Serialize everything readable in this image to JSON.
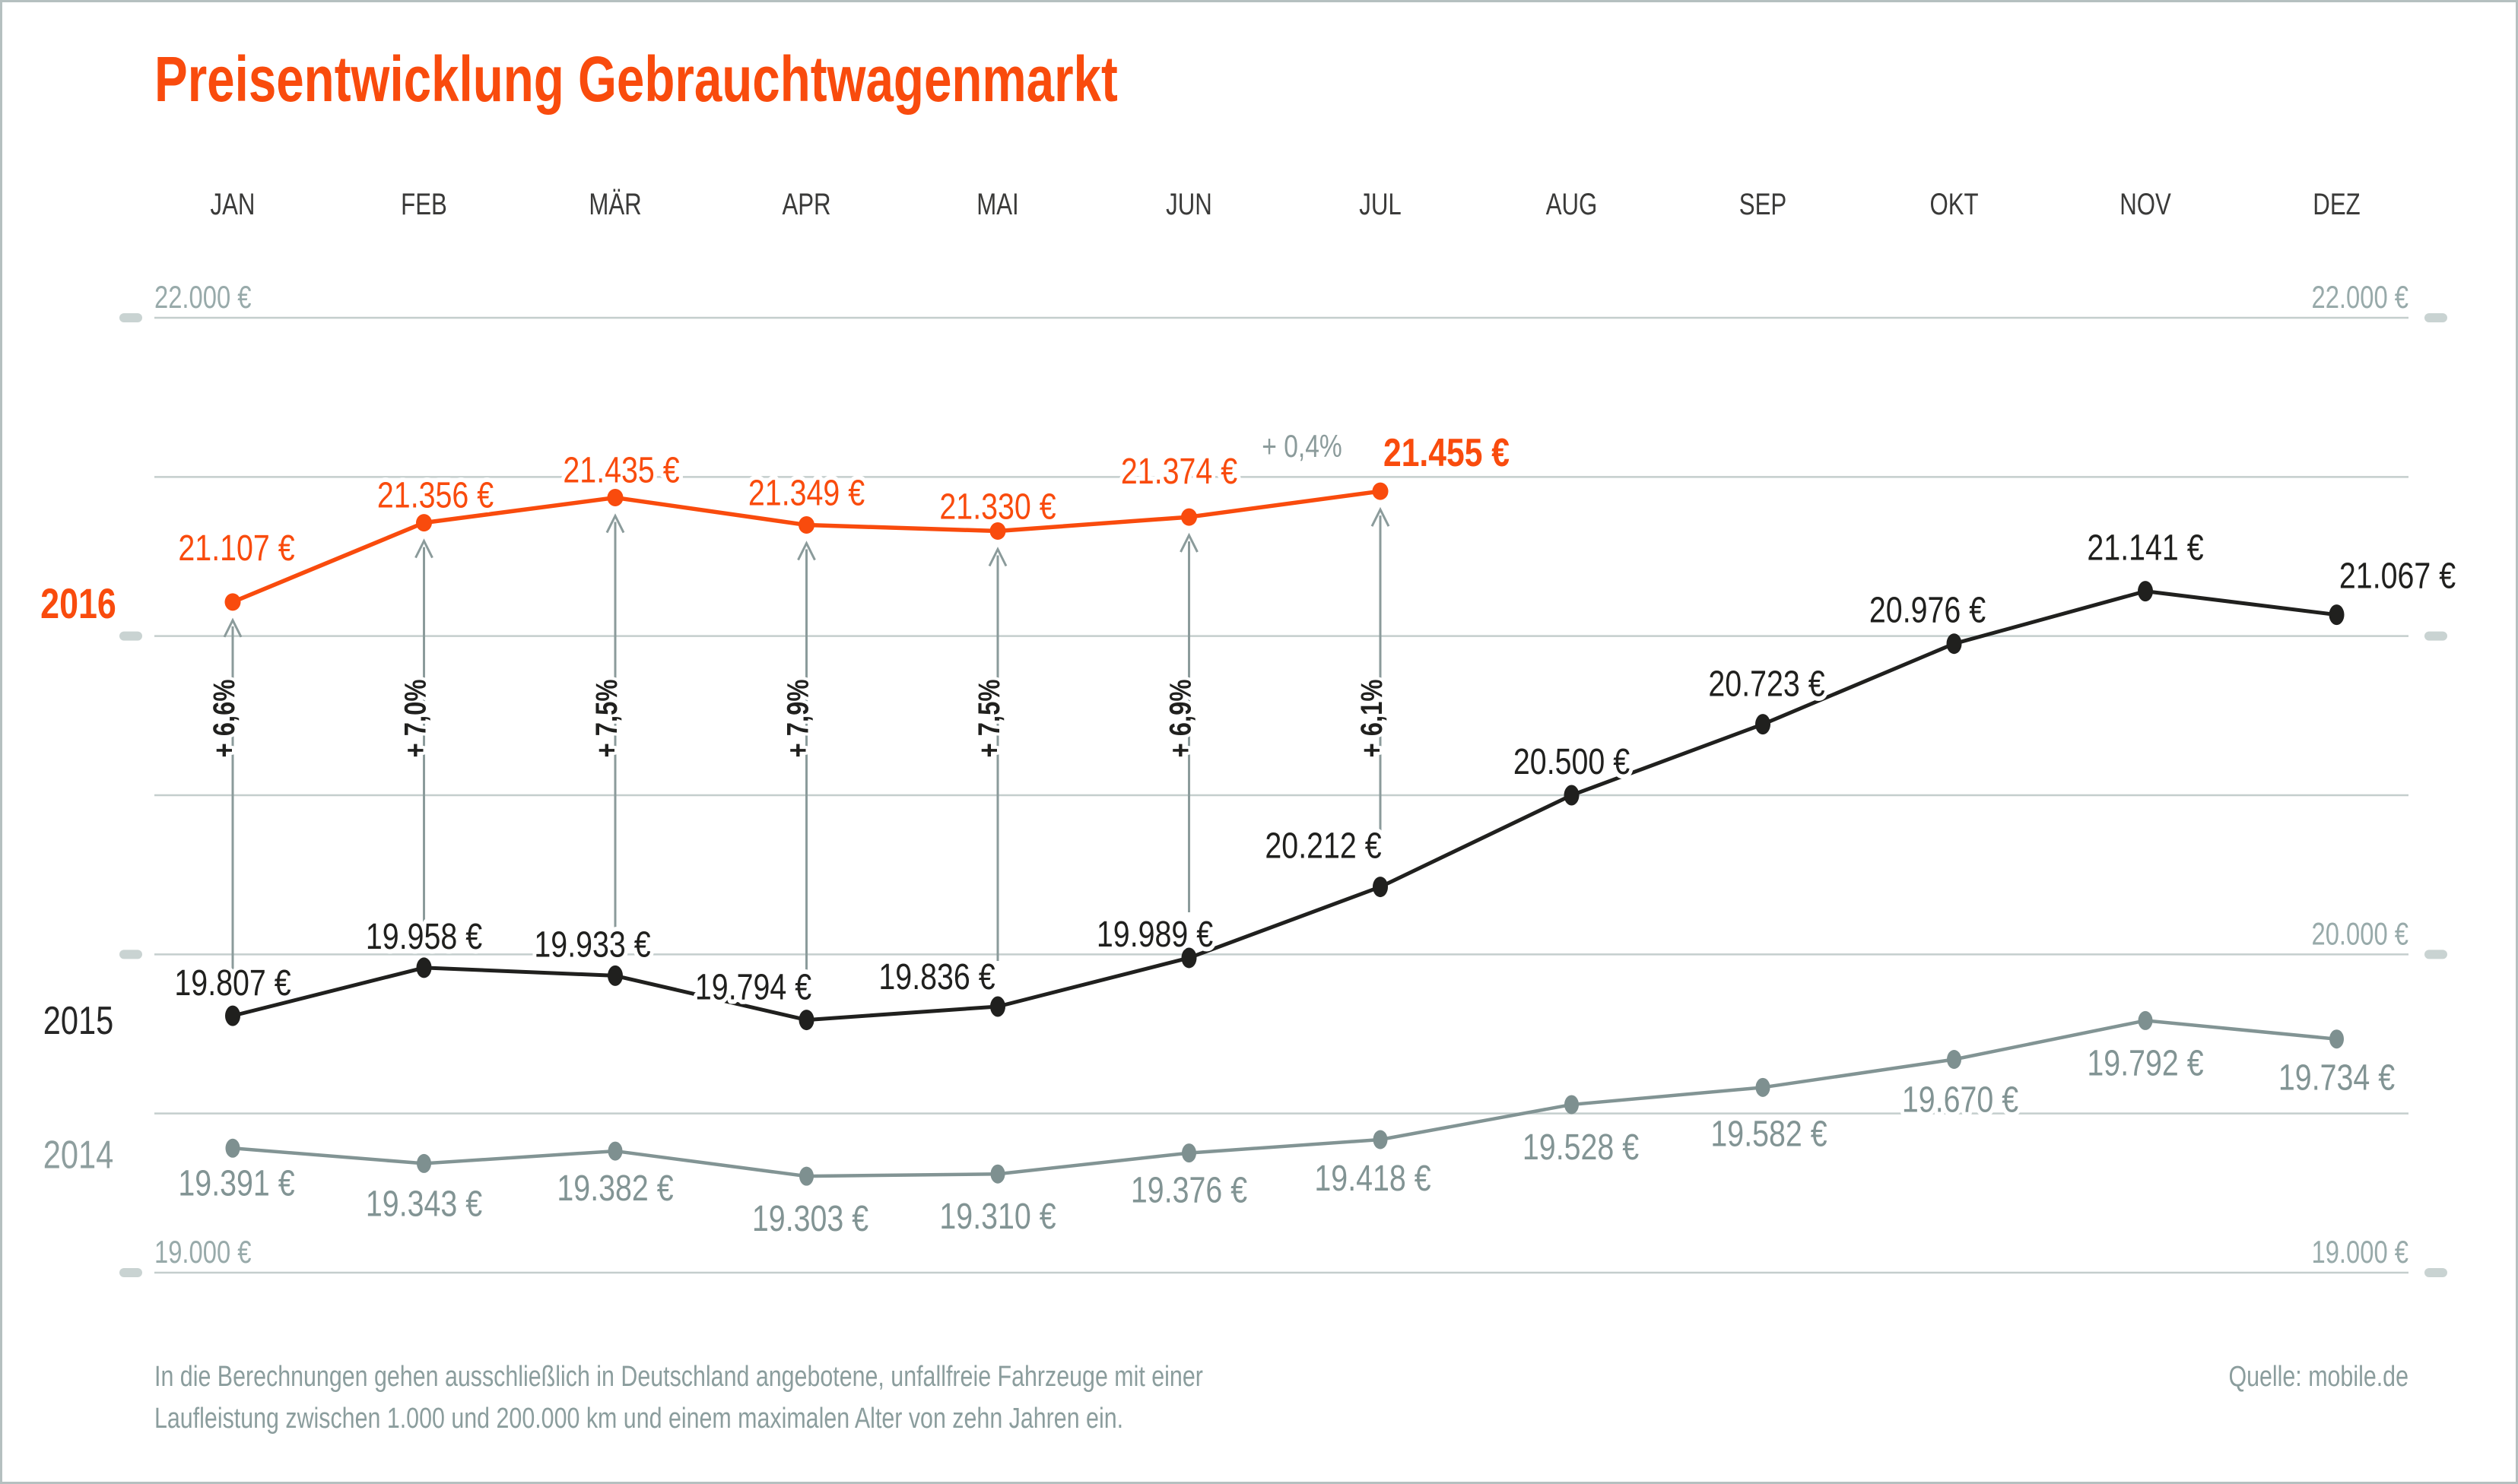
{
  "title": "Preisentwicklung Gebrauchtwagenmarkt",
  "footnote": {
    "line1": "In die Berechnungen gehen ausschließlich in Deutschland angebotene, unfallfreie Fahrzeuge mit einer",
    "line2": "Laufleistung zwischen 1.000 und 200.000 km und einem maximalen Alter von zehn Jahren ein."
  },
  "source": "Quelle: mobile.de",
  "colors": {
    "accent_orange": "#f94b0d",
    "series_2015": "#20201e",
    "series_2014": "#829494",
    "axis_text": "#98aaaa",
    "gridline": "#c4cecd",
    "arrow": "#8b9b9b",
    "footnote_text": "#8b9d9d"
  },
  "chart_data": {
    "type": "line",
    "title": "Preisentwicklung Gebrauchtwagenmarkt",
    "categories": [
      "JAN",
      "FEB",
      "MÄR",
      "APR",
      "MAI",
      "JUN",
      "JUL",
      "AUG",
      "SEP",
      "OKT",
      "NOV",
      "DEZ"
    ],
    "grid": true,
    "legend_position": "left-of-first-point",
    "y_axis": {
      "min": 19000,
      "max": 22000,
      "gridline_step": 500,
      "tick_values": [
        22000,
        21000,
        20000,
        19000
      ],
      "labels_left": [
        {
          "value": 22000,
          "text": "22.000 €"
        },
        {
          "value": 19000,
          "text": "19.000 €"
        }
      ],
      "labels_right": [
        {
          "value": 22000,
          "text": "22.000 €"
        },
        {
          "value": 20000,
          "text": "20.000 €"
        },
        {
          "value": 19000,
          "text": "19.000 €"
        }
      ]
    },
    "series": [
      {
        "name": "2016",
        "color": "#f94b0d",
        "values": [
          21107,
          21356,
          21435,
          21349,
          21330,
          21374,
          21455,
          null,
          null,
          null,
          null,
          null
        ],
        "labels": [
          "21.107 €",
          "21.356 €",
          "21.435 €",
          "21.349 €",
          "21.330 €",
          "21.374 €",
          "21.455 €",
          null,
          null,
          null,
          null,
          null
        ],
        "bold_label_index": 6
      },
      {
        "name": "2015",
        "color": "#20201e",
        "values": [
          19807,
          19958,
          19933,
          19794,
          19836,
          19989,
          20212,
          20500,
          20723,
          20976,
          21141,
          21067
        ],
        "labels": [
          "19.807 €",
          "19.958 €",
          "19.933 €",
          "19.794 €",
          "19.836 €",
          "19.989 €",
          "20.212 €",
          "20.500 €",
          "20.723 €",
          "20.976 €",
          "21.141 €",
          "21.067 €"
        ]
      },
      {
        "name": "2014",
        "color": "#829494",
        "values": [
          19391,
          19343,
          19382,
          19303,
          19310,
          19376,
          19418,
          19528,
          19582,
          19670,
          19792,
          19734
        ],
        "labels": [
          "19.391 €",
          "19.343 €",
          "19.382 €",
          "19.303 €",
          "19.310 €",
          "19.376 €",
          "19.418 €",
          "19.528 €",
          "19.582 €",
          "19.670 €",
          "19.792 €",
          "19.734 €"
        ]
      }
    ],
    "growth_arrows": [
      {
        "month": "JAN",
        "label": "+ 6,6%"
      },
      {
        "month": "FEB",
        "label": "+ 7,0%"
      },
      {
        "month": "MÄR",
        "label": "+ 7,5%"
      },
      {
        "month": "APR",
        "label": "+ 7,9%"
      },
      {
        "month": "MAI",
        "label": "+ 7,5%"
      },
      {
        "month": "JUN",
        "label": "+ 6,9%"
      },
      {
        "month": "JUL",
        "label": "+ 6,1%"
      }
    ],
    "mom_annotation": {
      "month": "JUL",
      "label": "+ 0,4%"
    }
  }
}
